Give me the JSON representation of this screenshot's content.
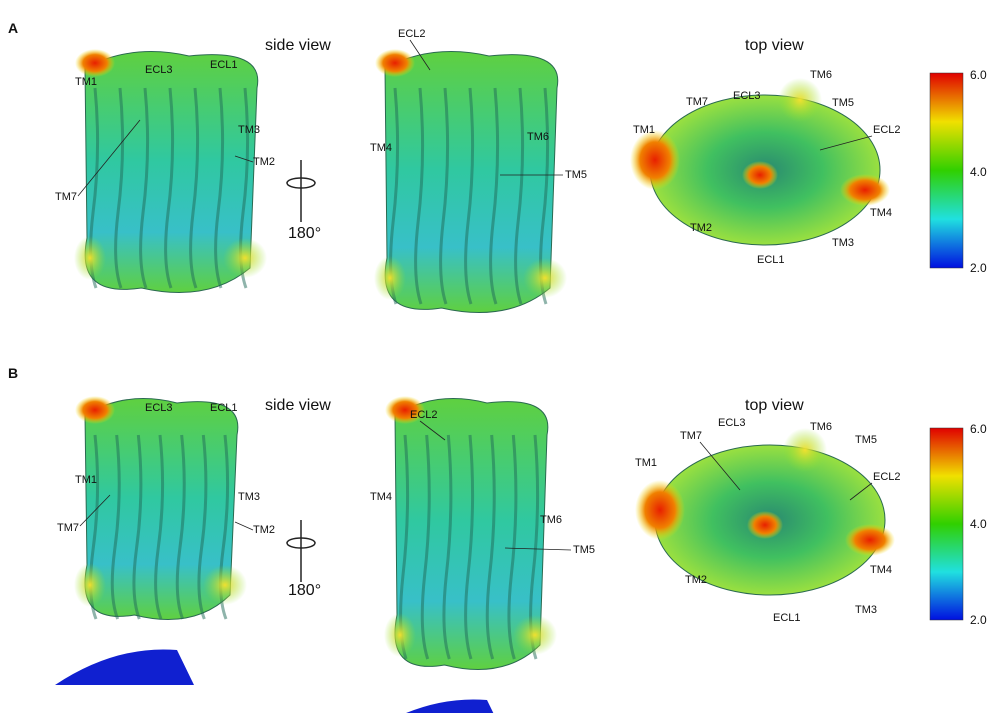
{
  "panels": [
    {
      "letter": "A",
      "side_view_label": "side view",
      "top_view_label": "top view",
      "rotation_label": "180°",
      "side_front_labels": [
        "TM1",
        "ECL3",
        "ECL1",
        "TM3",
        "TM2",
        "TM7"
      ],
      "side_back_labels": [
        "ECL2",
        "TM4",
        "TM6",
        "TM5"
      ],
      "top_labels": [
        "TM6",
        "TM7",
        "ECL3",
        "TM5",
        "TM1",
        "ECL2",
        "TM4",
        "TM2",
        "TM3",
        "ECL1"
      ],
      "colorbar": {
        "max": "6.0",
        "mid": "4.0",
        "min": "2.0"
      }
    },
    {
      "letter": "B",
      "side_view_label": "side view",
      "top_view_label": "top view",
      "rotation_label": "180°",
      "side_front_labels": [
        "ECL3",
        "ECL1",
        "TM1",
        "TM3",
        "TM2",
        "TM7"
      ],
      "side_back_labels": [
        "ECL2",
        "TM4",
        "TM6",
        "TM5"
      ],
      "top_labels": [
        "ECL3",
        "TM6",
        "TM7",
        "TM5",
        "TM1",
        "ECL2",
        "TM4",
        "TM2",
        "TM3",
        "ECL1"
      ],
      "colorbar": {
        "max": "6.0",
        "mid": "4.0",
        "min": "2.0"
      }
    }
  ],
  "colorbar_colors": [
    "#e00000",
    "#f0e000",
    "#30d000",
    "#20e0e0",
    "#0010e0"
  ]
}
